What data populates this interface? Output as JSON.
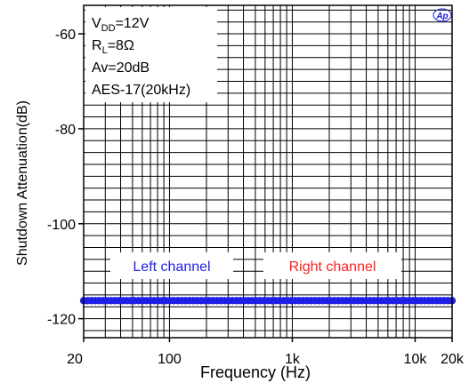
{
  "chart_data": {
    "type": "line",
    "title": "",
    "xlabel": "Frequency (Hz)",
    "ylabel": "Shutdown Attenuation(dB)",
    "x_scale": "log",
    "xlim": [
      20,
      20000
    ],
    "ylim": [
      -124,
      -54
    ],
    "grid": true,
    "x_ticks": [
      {
        "value": 20,
        "label": "20"
      },
      {
        "value": 100,
        "label": "100"
      },
      {
        "value": 1000,
        "label": "1k"
      },
      {
        "value": 10000,
        "label": "10k"
      },
      {
        "value": 20000,
        "label": "20k"
      }
    ],
    "y_ticks": [
      {
        "value": -60,
        "label": "-60"
      },
      {
        "value": -80,
        "label": "-80"
      },
      {
        "value": -100,
        "label": "-100"
      },
      {
        "value": -120,
        "label": "-120"
      }
    ],
    "conditions": [
      {
        "main": "V",
        "sub": "DD",
        "rest": "=12V"
      },
      {
        "main": "R",
        "sub": "L",
        "rest": "=8Ω"
      },
      {
        "main": "Av=20dB",
        "sub": "",
        "rest": ""
      },
      {
        "main": "AES-17(20kHz)",
        "sub": "",
        "rest": ""
      }
    ],
    "series": [
      {
        "name": "Left channel",
        "color": "#1f1fe6",
        "x": [
          20,
          30,
          50,
          70,
          100,
          150,
          200,
          300,
          500,
          700,
          1000,
          1500,
          2000,
          3000,
          5000,
          7000,
          10000,
          15000,
          20000
        ],
        "y": [
          -116.2,
          -116.2,
          -116.2,
          -116.2,
          -116.2,
          -116.2,
          -116.2,
          -116.2,
          -116.2,
          -116.2,
          -116.2,
          -116.2,
          -116.2,
          -116.2,
          -116.2,
          -116.2,
          -116.2,
          -116.2,
          -116.2
        ]
      },
      {
        "name": "Right channel",
        "color": "#ff2020",
        "x": [
          20,
          30,
          50,
          70,
          100,
          150,
          200,
          300,
          500,
          700,
          1000,
          1500,
          2000,
          3000,
          5000,
          7000,
          10000,
          15000,
          20000
        ],
        "y": [
          -116.4,
          -116.4,
          -116.4,
          -116.4,
          -116.4,
          -116.4,
          -116.4,
          -116.4,
          -116.4,
          -116.4,
          -116.4,
          -116.4,
          -116.4,
          -116.4,
          -116.4,
          -116.4,
          -116.4,
          -116.4,
          -116.4
        ]
      }
    ],
    "logo_text": "Ap"
  }
}
